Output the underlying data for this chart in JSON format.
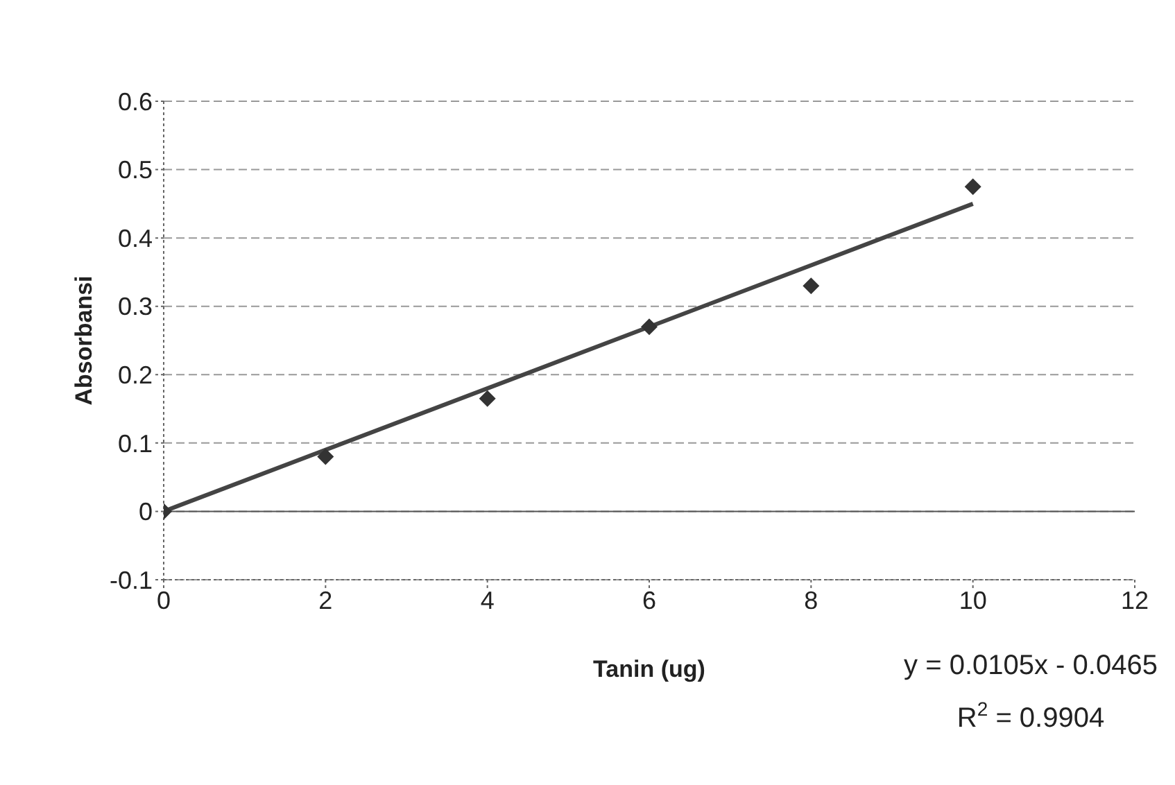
{
  "chart_data": {
    "type": "scatter",
    "xlabel": "Tanin (ug)",
    "ylabel": "Absorbansi",
    "xlim": [
      0,
      12
    ],
    "xticks": [
      0,
      2,
      4,
      6,
      8,
      10,
      12
    ],
    "ylim": [
      -0.1,
      0.6
    ],
    "yticks": [
      -0.1,
      0,
      0.1,
      0.2,
      0.3,
      0.4,
      0.5,
      0.6
    ],
    "grid": "y",
    "marker": "diamond",
    "series": [
      {
        "color": "#333333",
        "x": [
          0,
          2,
          4,
          6,
          8,
          10
        ],
        "values": [
          0,
          0.08,
          0.165,
          0.27,
          0.33,
          0.475
        ]
      },
      {
        "type": "line",
        "color": "#444444",
        "x": [
          0,
          10
        ],
        "values": [
          0,
          0.45
        ],
        "marker": "none"
      }
    ],
    "annotations": [
      "y = 0.0105x - 0.0465",
      "R$^{2}$ = 0.9904"
    ]
  }
}
